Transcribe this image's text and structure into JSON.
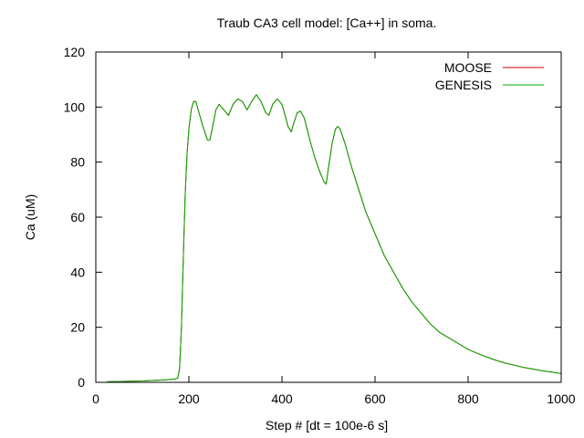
{
  "chart_data": {
    "type": "line",
    "title": "Traub CA3 cell model: [Ca++] in soma.",
    "xlabel": "Step # [dt = 100e-6 s]",
    "ylabel": "Ca (uM)",
    "xlim": [
      0,
      1000
    ],
    "ylim": [
      0,
      120
    ],
    "xticks": [
      0,
      200,
      400,
      600,
      800,
      1000
    ],
    "yticks": [
      0,
      20,
      40,
      60,
      80,
      100,
      120
    ],
    "grid": false,
    "legend_position": "top-right",
    "series": [
      {
        "name": "MOOSE",
        "color": "#cc0000",
        "points": [
          [
            25,
            0.2
          ],
          [
            50,
            0.3
          ],
          [
            75,
            0.4
          ],
          [
            100,
            0.5
          ],
          [
            125,
            0.7
          ],
          [
            150,
            0.9
          ],
          [
            170,
            1.2
          ],
          [
            176,
            1.5
          ],
          [
            180,
            5
          ],
          [
            184,
            20
          ],
          [
            188,
            45
          ],
          [
            192,
            68
          ],
          [
            196,
            83
          ],
          [
            200,
            92
          ],
          [
            205,
            99
          ],
          [
            210,
            102
          ],
          [
            215,
            102
          ],
          [
            220,
            99
          ],
          [
            230,
            93
          ],
          [
            240,
            88
          ],
          [
            245,
            88
          ],
          [
            250,
            92
          ],
          [
            258,
            99
          ],
          [
            265,
            101
          ],
          [
            275,
            99
          ],
          [
            285,
            97
          ],
          [
            295,
            101
          ],
          [
            305,
            103
          ],
          [
            315,
            102
          ],
          [
            325,
            99
          ],
          [
            335,
            102
          ],
          [
            345,
            104.5
          ],
          [
            355,
            102
          ],
          [
            365,
            98
          ],
          [
            372,
            97
          ],
          [
            380,
            101
          ],
          [
            390,
            103
          ],
          [
            400,
            101
          ],
          [
            405,
            98
          ],
          [
            413,
            93
          ],
          [
            420,
            91
          ],
          [
            425,
            94
          ],
          [
            433,
            98
          ],
          [
            440,
            98.5
          ],
          [
            448,
            96
          ],
          [
            460,
            88
          ],
          [
            470,
            82
          ],
          [
            480,
            77
          ],
          [
            490,
            73
          ],
          [
            495,
            72
          ],
          [
            500,
            78
          ],
          [
            508,
            87
          ],
          [
            515,
            92
          ],
          [
            520,
            93
          ],
          [
            525,
            92
          ],
          [
            535,
            87
          ],
          [
            550,
            78
          ],
          [
            565,
            70
          ],
          [
            580,
            62
          ],
          [
            600,
            54
          ],
          [
            620,
            46
          ],
          [
            640,
            40
          ],
          [
            660,
            34
          ],
          [
            680,
            29
          ],
          [
            700,
            25
          ],
          [
            720,
            21
          ],
          [
            740,
            18
          ],
          [
            760,
            16
          ],
          [
            780,
            14
          ],
          [
            800,
            12
          ],
          [
            820,
            10.5
          ],
          [
            840,
            9.2
          ],
          [
            860,
            8
          ],
          [
            880,
            7
          ],
          [
            900,
            6.2
          ],
          [
            920,
            5.4
          ],
          [
            940,
            4.8
          ],
          [
            960,
            4.2
          ],
          [
            980,
            3.7
          ],
          [
            1000,
            3.2
          ]
        ]
      },
      {
        "name": "GENESIS",
        "color": "#00aa00",
        "points": [
          [
            25,
            0.2
          ],
          [
            50,
            0.3
          ],
          [
            75,
            0.4
          ],
          [
            100,
            0.5
          ],
          [
            125,
            0.7
          ],
          [
            150,
            0.9
          ],
          [
            170,
            1.2
          ],
          [
            176,
            1.5
          ],
          [
            180,
            5
          ],
          [
            184,
            20
          ],
          [
            188,
            45
          ],
          [
            192,
            68
          ],
          [
            196,
            83
          ],
          [
            200,
            92
          ],
          [
            205,
            99
          ],
          [
            210,
            102
          ],
          [
            215,
            102
          ],
          [
            220,
            99
          ],
          [
            230,
            93
          ],
          [
            240,
            88
          ],
          [
            245,
            88
          ],
          [
            250,
            92
          ],
          [
            258,
            99
          ],
          [
            265,
            101
          ],
          [
            275,
            99
          ],
          [
            285,
            97
          ],
          [
            295,
            101
          ],
          [
            305,
            103
          ],
          [
            315,
            102
          ],
          [
            325,
            99
          ],
          [
            335,
            102
          ],
          [
            345,
            104.5
          ],
          [
            355,
            102
          ],
          [
            365,
            98
          ],
          [
            372,
            97
          ],
          [
            380,
            101
          ],
          [
            390,
            103
          ],
          [
            400,
            101
          ],
          [
            405,
            98
          ],
          [
            413,
            93
          ],
          [
            420,
            91
          ],
          [
            425,
            94
          ],
          [
            433,
            98
          ],
          [
            440,
            98.5
          ],
          [
            448,
            96
          ],
          [
            460,
            88
          ],
          [
            470,
            82
          ],
          [
            480,
            77
          ],
          [
            490,
            73
          ],
          [
            495,
            72
          ],
          [
            500,
            78
          ],
          [
            508,
            87
          ],
          [
            515,
            92
          ],
          [
            520,
            93
          ],
          [
            525,
            92
          ],
          [
            535,
            87
          ],
          [
            550,
            78
          ],
          [
            565,
            70
          ],
          [
            580,
            62
          ],
          [
            600,
            54
          ],
          [
            620,
            46
          ],
          [
            640,
            40
          ],
          [
            660,
            34
          ],
          [
            680,
            29
          ],
          [
            700,
            25
          ],
          [
            720,
            21
          ],
          [
            740,
            18
          ],
          [
            760,
            16
          ],
          [
            780,
            14
          ],
          [
            800,
            12
          ],
          [
            820,
            10.5
          ],
          [
            840,
            9.2
          ],
          [
            860,
            8
          ],
          [
            880,
            7
          ],
          [
            900,
            6.2
          ],
          [
            920,
            5.4
          ],
          [
            940,
            4.8
          ],
          [
            960,
            4.2
          ],
          [
            980,
            3.7
          ],
          [
            1000,
            3.2
          ]
        ]
      }
    ]
  }
}
